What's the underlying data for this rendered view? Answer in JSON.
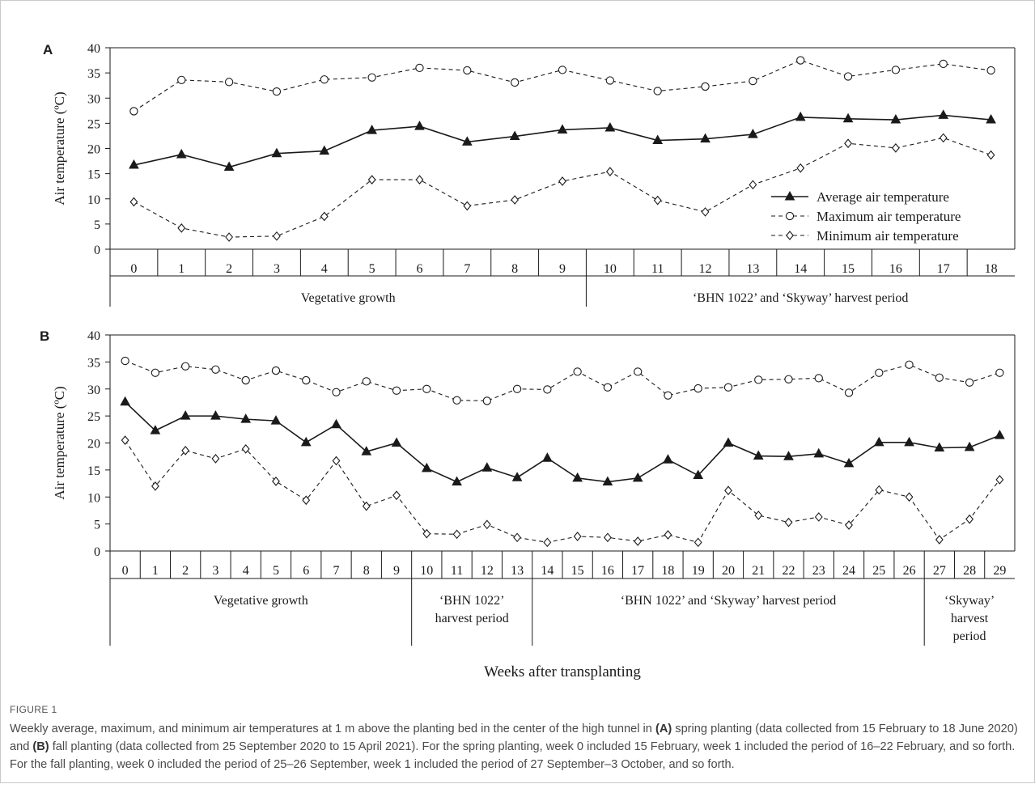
{
  "chart_data": [
    {
      "panel": "A",
      "type": "line",
      "ylabel": "Air temperature (ºC)",
      "ylim": [
        0,
        40
      ],
      "yticks": [
        0,
        5,
        10,
        15,
        20,
        25,
        30,
        35,
        40
      ],
      "x": [
        0,
        1,
        2,
        3,
        4,
        5,
        6,
        7,
        8,
        9,
        10,
        11,
        12,
        13,
        14,
        15,
        16,
        17,
        18
      ],
      "legend": "right",
      "series": [
        {
          "name": "Average air temperature",
          "marker": "triangle",
          "dash": "solid",
          "values": [
            16.7,
            18.8,
            16.3,
            19.0,
            19.5,
            23.6,
            24.4,
            21.3,
            22.4,
            23.7,
            24.1,
            21.6,
            21.9,
            22.8,
            26.2,
            25.9,
            25.7,
            26.6,
            25.7
          ]
        },
        {
          "name": "Maximum air temperature",
          "marker": "circle",
          "dash": "dashed",
          "values": [
            27.4,
            33.6,
            33.2,
            31.3,
            33.7,
            34.1,
            36.0,
            35.5,
            33.1,
            35.6,
            33.5,
            31.4,
            32.3,
            33.4,
            37.5,
            34.3,
            35.6,
            36.8,
            35.5
          ]
        },
        {
          "name": "Minimum air temperature",
          "marker": "diamond",
          "dash": "dashed",
          "values": [
            9.4,
            4.2,
            2.4,
            2.6,
            6.5,
            13.8,
            13.8,
            8.6,
            9.8,
            13.5,
            15.4,
            9.7,
            7.4,
            12.8,
            16.1,
            21.0,
            20.1,
            22.1,
            18.7
          ]
        }
      ],
      "periods": [
        {
          "label": [
            "Vegetative growth"
          ],
          "start": 0,
          "end": 9
        },
        {
          "label": [
            "‘BHN 1022’ and ‘Skyway’ harvest period"
          ],
          "start": 10,
          "end": 18
        }
      ]
    },
    {
      "panel": "B",
      "type": "line",
      "ylabel": "Air temperature (ºC)",
      "ylim": [
        0,
        40
      ],
      "yticks": [
        0,
        5,
        10,
        15,
        20,
        25,
        30,
        35,
        40
      ],
      "x": [
        0,
        1,
        2,
        3,
        4,
        5,
        6,
        7,
        8,
        9,
        10,
        11,
        12,
        13,
        14,
        15,
        16,
        17,
        18,
        19,
        20,
        21,
        22,
        23,
        24,
        25,
        26,
        27,
        28,
        29
      ],
      "xlabel": "Weeks after transplanting",
      "series": [
        {
          "name": "Average air temperature",
          "marker": "triangle",
          "dash": "solid",
          "values": [
            27.6,
            22.3,
            25.0,
            25.0,
            24.4,
            24.1,
            20.1,
            23.4,
            18.4,
            20.0,
            15.3,
            12.8,
            15.4,
            13.6,
            17.2,
            13.5,
            12.8,
            13.5,
            16.9,
            14.0,
            20.0,
            17.6,
            17.5,
            18.0,
            16.2,
            20.1,
            20.1,
            19.1,
            19.2,
            21.4
          ]
        },
        {
          "name": "Maximum air temperature",
          "marker": "circle",
          "dash": "dashed",
          "values": [
            35.2,
            33.0,
            34.2,
            33.6,
            31.6,
            33.4,
            31.6,
            29.4,
            31.4,
            29.7,
            30.0,
            27.9,
            27.8,
            30.0,
            29.9,
            33.2,
            30.3,
            33.2,
            28.8,
            30.1,
            30.3,
            31.7,
            31.8,
            32.0,
            29.3,
            33.0,
            34.5,
            32.1,
            31.2,
            33.0
          ]
        },
        {
          "name": "Minimum air temperature",
          "marker": "diamond",
          "dash": "dashed",
          "values": [
            20.5,
            12.0,
            18.6,
            17.1,
            18.9,
            12.9,
            9.4,
            16.7,
            8.3,
            10.3,
            3.2,
            3.1,
            4.9,
            2.5,
            1.6,
            2.7,
            2.5,
            1.8,
            3.0,
            1.6,
            11.2,
            6.6,
            5.3,
            6.3,
            4.8,
            11.3,
            10.0,
            2.1,
            5.9,
            13.2
          ]
        }
      ],
      "periods": [
        {
          "label": [
            "Vegetative growth"
          ],
          "start": 0,
          "end": 9
        },
        {
          "label": [
            "‘BHN 1022’",
            "harvest period"
          ],
          "start": 10,
          "end": 13
        },
        {
          "label": [
            "‘BHN 1022’ and ‘Skyway’ harvest period"
          ],
          "start": 14,
          "end": 26
        },
        {
          "label": [
            "‘Skyway’",
            "harvest",
            "period"
          ],
          "start": 27,
          "end": 29
        }
      ]
    }
  ],
  "figure": {
    "label": "FIGURE 1",
    "caption_parts": [
      {
        "text": "Weekly average, maximum, and minimum air temperatures at 1 m above the planting bed in the center of the high tunnel in ",
        "bold": false
      },
      {
        "text": "(A)",
        "bold": true
      },
      {
        "text": " spring planting (data collected from 15 February to 18 June 2020) and ",
        "bold": false
      },
      {
        "text": "(B)",
        "bold": true
      },
      {
        "text": " fall planting (data collected from 25 September 2020 to 15 April 2021). For the spring planting, week 0 included 15 February, week 1 included the period of 16–22 February, and so forth. For the fall planting, week 0 included the period of 25–26 September, week 1 included the period of 27 September–3 October, and so forth.",
        "bold": false
      }
    ]
  },
  "colors": {
    "line": "#1a1a1a",
    "frame": "#c9c9c9"
  }
}
